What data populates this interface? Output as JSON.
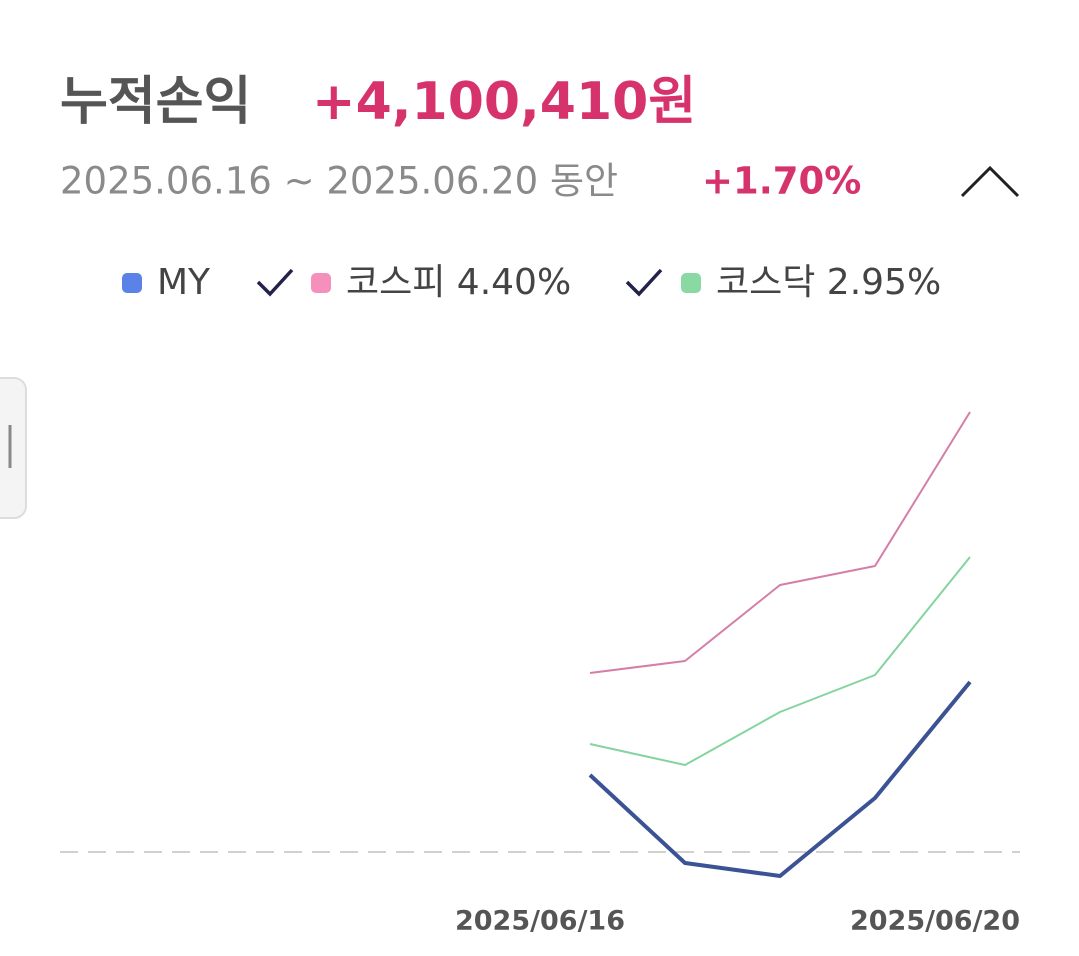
{
  "header": {
    "title": "누적손익",
    "amount": "+4,100,410원",
    "period": "2025.06.16 ~ 2025.06.20 동안",
    "rate": "+1.70%"
  },
  "chart_data": {
    "type": "line",
    "categories": [
      "2025/06/16",
      null,
      null,
      null,
      "2025/06/20"
    ],
    "series": [
      {
        "name": "MY",
        "color": "#3b5394",
        "legend_color": "#5b82e6",
        "values": [
          0.77,
          -0.11,
          -0.24,
          0.54,
          1.7
        ]
      },
      {
        "name": "코스피 4.40%",
        "color": "#d47ea8",
        "legend_color": "#f590bd",
        "values": [
          1.79,
          1.91,
          2.67,
          2.86,
          4.4
        ]
      },
      {
        "name": "코스닥 2.95%",
        "color": "#84d49e",
        "legend_color": "#8ad9a3",
        "values": [
          1.08,
          0.87,
          1.4,
          1.77,
          2.95
        ]
      }
    ],
    "ylim": [
      -0.5,
      5.0
    ]
  }
}
